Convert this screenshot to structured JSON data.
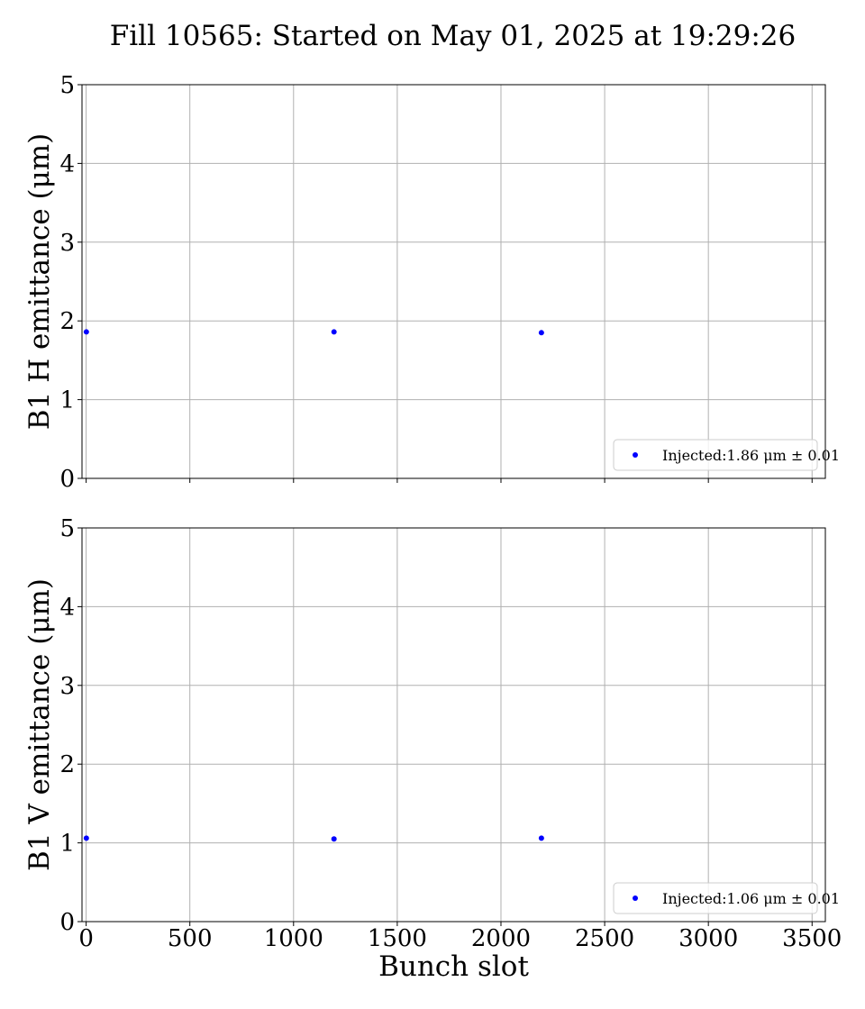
{
  "title": "Fill 10565: Started on May 01, 2025 at 19:29:26",
  "colors": {
    "series": "#0000ff",
    "grid": "#b0b0b0",
    "axes": "#000000"
  },
  "chart_data": [
    {
      "type": "scatter",
      "ylabel": "B1 H emittance (μm)",
      "xlabel": "",
      "xlim": [
        -20,
        3564
      ],
      "ylim": [
        0,
        5
      ],
      "x_ticks": [
        0,
        500,
        1000,
        1500,
        2000,
        2500,
        3000,
        3500
      ],
      "y_ticks": [
        0,
        1,
        2,
        3,
        4,
        5
      ],
      "grid": true,
      "legend_position": "lower-right",
      "series": [
        {
          "name": "Injected:1.86 μm ± 0.01",
          "x": [
            1,
            1195,
            2195
          ],
          "y": [
            1.86,
            1.86,
            1.85
          ]
        }
      ]
    },
    {
      "type": "scatter",
      "ylabel": "B1 V emittance (μm)",
      "xlabel": "Bunch slot",
      "xlim": [
        -20,
        3564
      ],
      "ylim": [
        0,
        5
      ],
      "x_ticks": [
        0,
        500,
        1000,
        1500,
        2000,
        2500,
        3000,
        3500
      ],
      "y_ticks": [
        0,
        1,
        2,
        3,
        4,
        5
      ],
      "grid": true,
      "legend_position": "lower-right",
      "series": [
        {
          "name": "Injected:1.06 μm ± 0.01",
          "x": [
            1,
            1195,
            2195
          ],
          "y": [
            1.06,
            1.05,
            1.06
          ]
        }
      ]
    }
  ]
}
